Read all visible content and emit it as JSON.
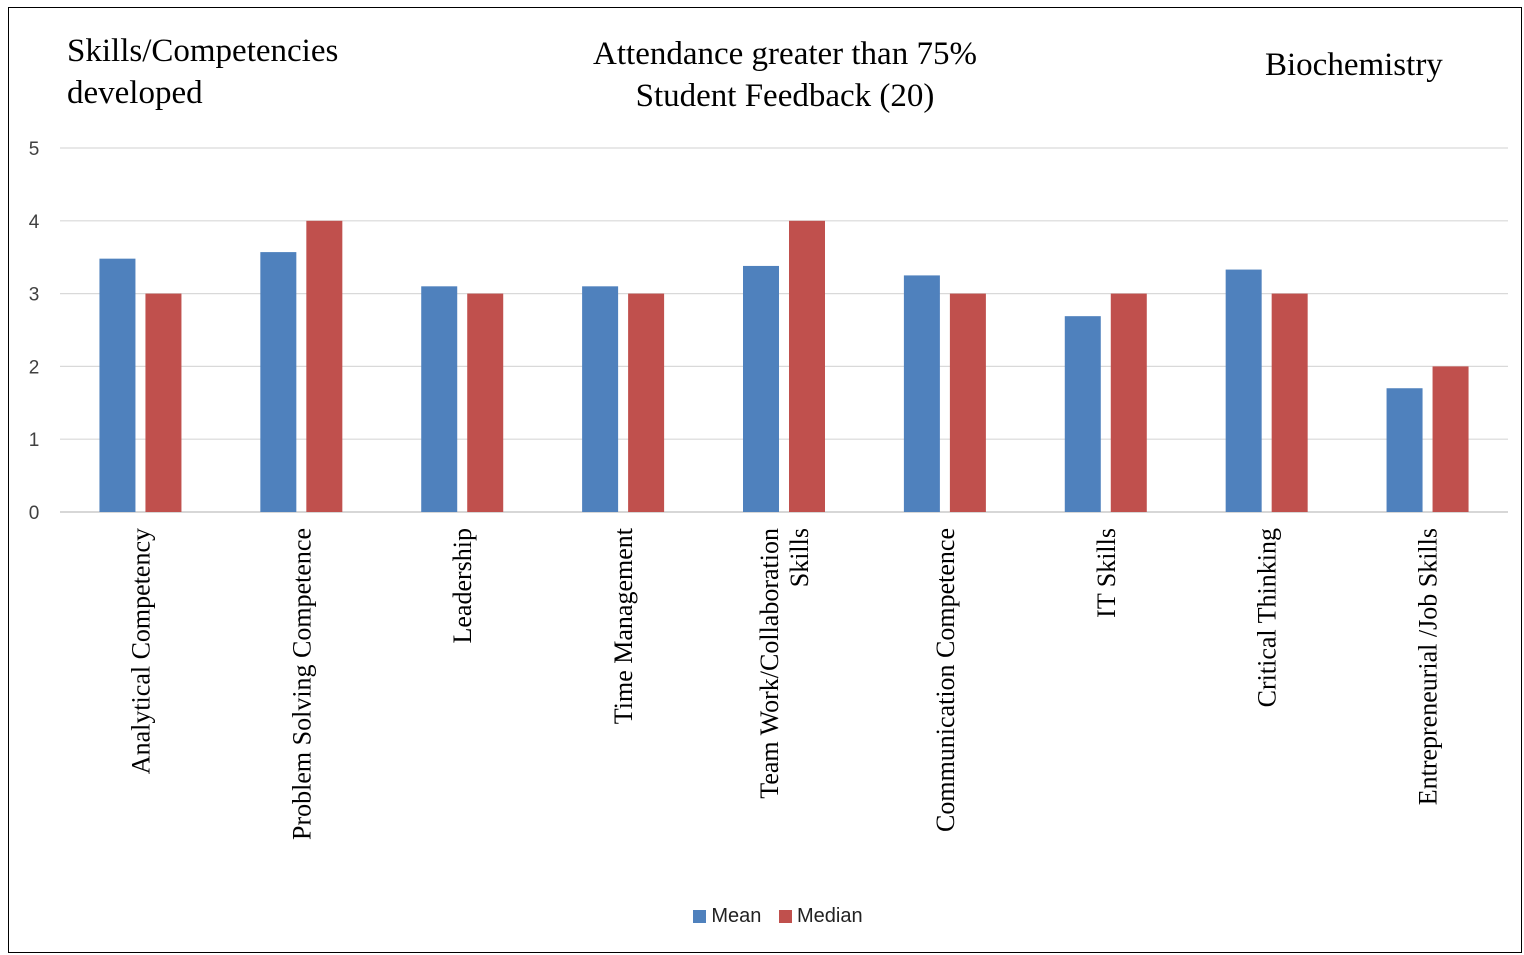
{
  "header": {
    "left_title": "Skills/Competencies developed",
    "center_title_line1": "Attendance greater than 75%",
    "center_title_line2": "Student Feedback (20)",
    "right_title": "Biochemistry"
  },
  "chart_data": {
    "type": "bar",
    "categories": [
      "Analytical Competency",
      "Problem Solving Competence",
      "Leadership",
      "Time Management",
      "Team Work/Collaboration Skills",
      "Communication Competence",
      "IT Skills",
      "Critical Thinking",
      "Entrepreneurial /Job Skills"
    ],
    "category_lines": [
      [
        "Analytical Competency"
      ],
      [
        "Problem Solving Competence"
      ],
      [
        "Leadership"
      ],
      [
        "Time Management"
      ],
      [
        "Team Work/Collaboration",
        "Skills"
      ],
      [
        "Communication Competence"
      ],
      [
        "IT Skills"
      ],
      [
        "Critical Thinking"
      ],
      [
        "Entrepreneurial /Job Skills"
      ]
    ],
    "series": [
      {
        "name": "Mean",
        "color": "#4F81BD",
        "values": [
          3.48,
          3.57,
          3.1,
          3.1,
          3.38,
          3.25,
          2.69,
          3.33,
          1.7
        ]
      },
      {
        "name": "Median",
        "color": "#C0504D",
        "values": [
          3,
          4,
          3,
          3,
          4,
          3,
          3,
          3,
          2
        ]
      }
    ],
    "ylim": [
      0,
      5
    ],
    "yticks": [
      "0",
      "1",
      "2",
      "3",
      "4",
      "5"
    ],
    "grid": true,
    "legend": "bottom"
  }
}
